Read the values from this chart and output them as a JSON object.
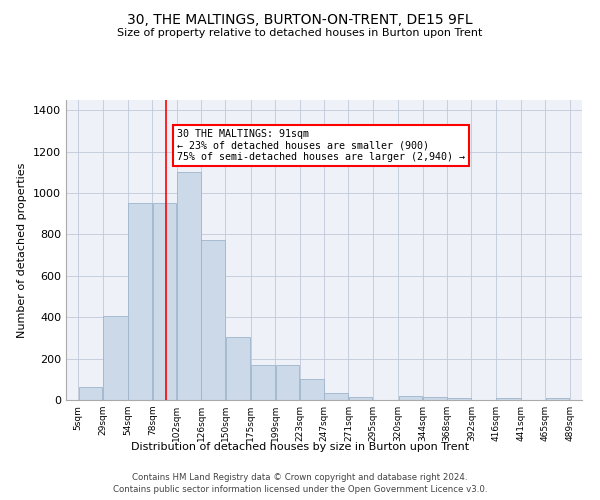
{
  "title": "30, THE MALTINGS, BURTON-ON-TRENT, DE15 9FL",
  "subtitle": "Size of property relative to detached houses in Burton upon Trent",
  "xlabel": "Distribution of detached houses by size in Burton upon Trent",
  "ylabel": "Number of detached properties",
  "bar_color": "#ccd9e8",
  "bar_edgecolor": "#9eb4cc",
  "bar_linewidth": 0.6,
  "grid_color": "#c0c8d8",
  "bg_color": "#eef2f8",
  "red_line_x": 91,
  "annotation_text": "30 THE MALTINGS: 91sqm\n← 23% of detached houses are smaller (900)\n75% of semi-detached houses are larger (2,940) →",
  "annotation_box_color": "white",
  "annotation_box_edgecolor": "red",
  "footnote1": "Contains HM Land Registry data © Crown copyright and database right 2024.",
  "footnote2": "Contains public sector information licensed under the Open Government Licence v3.0.",
  "bins": [
    5,
    29,
    54,
    78,
    102,
    126,
    150,
    175,
    199,
    223,
    247,
    271,
    295,
    320,
    344,
    368,
    392,
    416,
    441,
    465,
    489
  ],
  "counts": [
    65,
    405,
    950,
    950,
    1100,
    775,
    305,
    170,
    170,
    100,
    35,
    15,
    0,
    20,
    15,
    10,
    0,
    10,
    0,
    10
  ],
  "ylim": [
    0,
    1450
  ],
  "yticks": [
    0,
    200,
    400,
    600,
    800,
    1000,
    1200,
    1400
  ],
  "bin_labels": [
    "5sqm",
    "29sqm",
    "54sqm",
    "78sqm",
    "102sqm",
    "126sqm",
    "150sqm",
    "175sqm",
    "199sqm",
    "223sqm",
    "247sqm",
    "271sqm",
    "295sqm",
    "320sqm",
    "344sqm",
    "368sqm",
    "392sqm",
    "416sqm",
    "441sqm",
    "465sqm",
    "489sqm"
  ]
}
